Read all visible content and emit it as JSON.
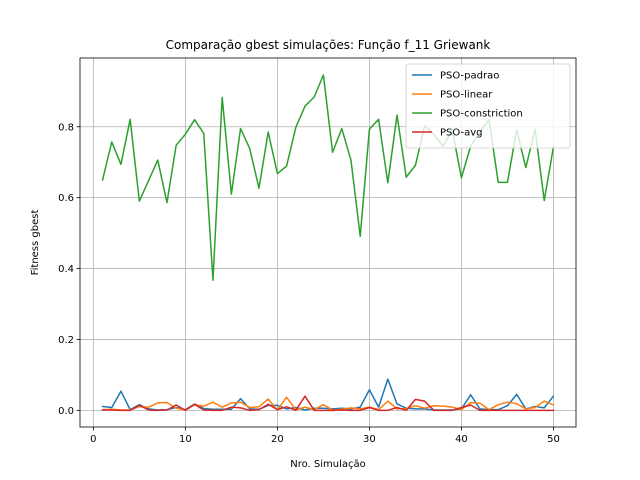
{
  "chart_data": {
    "type": "line",
    "title": "Comparação gbest simulações: Função f_11 Griewank",
    "xlabel": "Nro. Simulação",
    "ylabel": "Fitness gbest",
    "xlim": [
      -1.45,
      52.45
    ],
    "ylim": [
      -0.047,
      0.994
    ],
    "xticks": [
      0,
      10,
      20,
      30,
      40,
      50
    ],
    "yticks": [
      0.0,
      0.2,
      0.4,
      0.6,
      0.8
    ],
    "ytick_labels": [
      "0.0",
      "0.2",
      "0.4",
      "0.6",
      "0.8"
    ],
    "grid": true,
    "legend_position": "top-right",
    "x": [
      1,
      2,
      3,
      4,
      5,
      6,
      7,
      8,
      9,
      10,
      11,
      12,
      13,
      14,
      15,
      16,
      17,
      18,
      19,
      20,
      21,
      22,
      23,
      24,
      25,
      26,
      27,
      28,
      29,
      30,
      31,
      32,
      33,
      34,
      35,
      36,
      37,
      38,
      39,
      40,
      41,
      42,
      43,
      44,
      45,
      46,
      47,
      48,
      49,
      50
    ],
    "series": [
      {
        "name": "PSO-padrao",
        "color": "#1f77b4",
        "values": [
          0.011,
          0.008,
          0.054,
          0.002,
          0.016,
          0.004,
          0.001,
          0.002,
          0.008,
          0.002,
          0.018,
          0.005,
          0.003,
          0.003,
          0.003,
          0.033,
          0.004,
          0.003,
          0.014,
          0.014,
          0.004,
          0.008,
          0.001,
          0.006,
          0.006,
          0.004,
          0.006,
          0.004,
          0.009,
          0.058,
          0.009,
          0.088,
          0.018,
          0.006,
          0.004,
          0.004,
          0.001,
          0.001,
          0.001,
          0.004,
          0.044,
          0.004,
          0.002,
          0.002,
          0.013,
          0.045,
          0.004,
          0.011,
          0.007,
          0.04
        ]
      },
      {
        "name": "PSO-linear",
        "color": "#ff7f0e",
        "values": [
          0.002,
          0.003,
          0.001,
          0.001,
          0.011,
          0.009,
          0.021,
          0.022,
          0.006,
          0.001,
          0.016,
          0.012,
          0.023,
          0.009,
          0.021,
          0.023,
          0.008,
          0.01,
          0.032,
          0.001,
          0.037,
          0.001,
          0.009,
          0.002,
          0.016,
          0.001,
          0.003,
          0.007,
          0.004,
          0.009,
          0.002,
          0.026,
          0.004,
          0.005,
          0.013,
          0.006,
          0.013,
          0.012,
          0.009,
          0.002,
          0.022,
          0.02,
          0.002,
          0.016,
          0.023,
          0.019,
          0.004,
          0.008,
          0.026,
          0.015
        ]
      },
      {
        "name": "PSO-constriction",
        "color": "#2ca02c",
        "values": [
          0.65,
          0.757,
          0.694,
          0.821,
          0.59,
          0.648,
          0.706,
          0.586,
          0.748,
          0.779,
          0.82,
          0.781,
          0.367,
          0.883,
          0.61,
          0.795,
          0.738,
          0.627,
          0.785,
          0.668,
          0.689,
          0.798,
          0.858,
          0.884,
          0.946,
          0.728,
          0.795,
          0.705,
          0.491,
          0.793,
          0.821,
          0.642,
          0.833,
          0.658,
          0.691,
          0.803,
          0.779,
          0.745,
          0.791,
          0.656,
          0.745,
          0.785,
          0.82,
          0.643,
          0.643,
          0.791,
          0.685,
          0.793,
          0.592,
          0.743
        ]
      },
      {
        "name": "PSO-avg",
        "color": "#d62728",
        "values": [
          0.001,
          0.001,
          0.0,
          0.0,
          0.014,
          0.001,
          0.0,
          0.001,
          0.015,
          0.0,
          0.017,
          0.001,
          0.0,
          0.0,
          0.009,
          0.007,
          0.0,
          0.002,
          0.017,
          0.002,
          0.01,
          0.0,
          0.04,
          0.0,
          0.0,
          0.0,
          0.001,
          0.0,
          0.0,
          0.008,
          0.0,
          0.0,
          0.008,
          0.0,
          0.031,
          0.026,
          0.0,
          0.0,
          0.0,
          0.008,
          0.015,
          0.0,
          0.0,
          0.0,
          0.0,
          0.0,
          0.0,
          0.0,
          0.0,
          0.0
        ]
      }
    ]
  }
}
